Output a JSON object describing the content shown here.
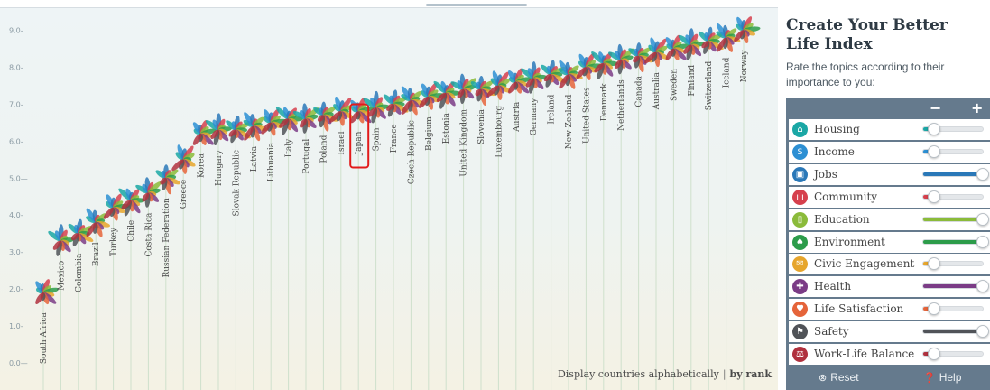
{
  "chart_data": {
    "type": "line",
    "title": "",
    "xlabel": "",
    "ylabel": "",
    "ylim": [
      0,
      9.6
    ],
    "yticks": [
      "0.0",
      "1.0",
      "2.0",
      "3.0",
      "4.0",
      "5.0",
      "6.0",
      "7.0",
      "8.0",
      "9.0"
    ],
    "grid": false,
    "highlight": "Japan",
    "categories": [
      "South Africa",
      "Mexico",
      "Colombia",
      "Brazil",
      "Turkey",
      "Chile",
      "Costa Rica",
      "Russian Federation",
      "Greece",
      "Korea",
      "Hungary",
      "Slovak Republic",
      "Latvia",
      "Lithuania",
      "Italy",
      "Portugal",
      "Poland",
      "Israel",
      "Japan",
      "Spain",
      "France",
      "Czech Republic",
      "Belgium",
      "Estonia",
      "United Kingdom",
      "Slovenia",
      "Luxembourg",
      "Austria",
      "Germany",
      "Ireland",
      "New Zealand",
      "United States",
      "Denmark",
      "Netherlands",
      "Canada",
      "Australia",
      "Sweden",
      "Finland",
      "Switzerland",
      "Iceland",
      "Norway"
    ],
    "labels": [
      "South Africa",
      "Mexico",
      "Colombia",
      "Brazil",
      "Turkey",
      "Chile",
      "Costa Rica",
      "Russian Federation",
      "Greece",
      "Korea",
      "Hungary",
      "Slovak Republic",
      "Latvia",
      "Lithuania",
      "Italy",
      "Portugal",
      "Poland",
      "Israel",
      "Japan",
      "Spain",
      "France",
      "Czech Republic",
      "Belgium",
      "Estonia",
      "United Kingdom",
      "Slovenia",
      "Luxembourg",
      "Austria",
      "Germany",
      "Ireland",
      "New Zealand",
      "United States",
      "Denmark",
      "Netherlands",
      "Canada",
      "Australia",
      "Sweden",
      "Finland",
      "Switzerland",
      "Iceland",
      "Norway"
    ],
    "values": [
      1.9,
      3.3,
      3.5,
      3.8,
      4.2,
      4.4,
      4.6,
      5.0,
      5.5,
      6.2,
      6.3,
      6.3,
      6.4,
      6.5,
      6.6,
      6.6,
      6.7,
      6.8,
      6.8,
      6.9,
      7.0,
      7.1,
      7.2,
      7.3,
      7.4,
      7.4,
      7.5,
      7.6,
      7.7,
      7.8,
      7.8,
      8.0,
      8.1,
      8.2,
      8.3,
      8.4,
      8.5,
      8.6,
      8.7,
      8.8,
      9.0
    ]
  },
  "sort": {
    "prefix": "Display countries alphabetically",
    "separator": "|",
    "active": "by rank"
  },
  "panel": {
    "title": "Create Your Better Life Index",
    "subtitle": "Rate the topics according to their importance to you:",
    "minus": "−",
    "plus": "+",
    "topics": [
      {
        "label": "Housing",
        "icon": "house-icon",
        "color": "#1aa7a5",
        "level": 0.18
      },
      {
        "label": "Income",
        "icon": "money-icon",
        "color": "#2c8fd3",
        "level": 0.18
      },
      {
        "label": "Jobs",
        "icon": "briefcase-icon",
        "color": "#2a78b8",
        "level": 1.0
      },
      {
        "label": "Community",
        "icon": "people-icon",
        "color": "#d6404d",
        "level": 0.18
      },
      {
        "label": "Education",
        "icon": "book-icon",
        "color": "#8bbb3a",
        "level": 1.0
      },
      {
        "label": "Environment",
        "icon": "leaf-icon",
        "color": "#2c9c4a",
        "level": 1.0
      },
      {
        "label": "Civic Engagement",
        "icon": "envelope-icon",
        "color": "#e6a52c",
        "level": 0.18
      },
      {
        "label": "Health",
        "icon": "cross-icon",
        "color": "#7b3c86",
        "level": 1.0
      },
      {
        "label": "Life Satisfaction",
        "icon": "heart-icon",
        "color": "#e5643a",
        "level": 0.18
      },
      {
        "label": "Safety",
        "icon": "runner-icon",
        "color": "#505358",
        "level": 1.0
      },
      {
        "label": "Work-Life Balance",
        "icon": "scales-icon",
        "color": "#b0313e",
        "level": 0.18
      }
    ],
    "reset_label": "Reset",
    "help_label": "Help"
  }
}
